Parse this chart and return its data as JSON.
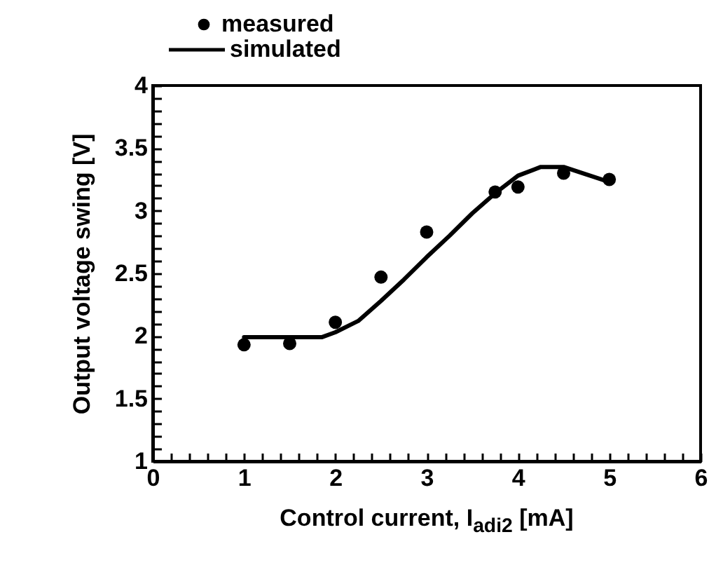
{
  "chart_data": {
    "type": "scatter",
    "xlabel": "Control current, I$_{adi2}$ [mA]",
    "ylabel": "Output voltage swing [V]",
    "xlim": [
      0,
      6
    ],
    "ylim": [
      1,
      4
    ],
    "xticks": [
      0,
      {
        "value": 0.2,
        "label": null
      },
      {
        "value": 0.4,
        "label": null
      },
      {
        "value": 0.6,
        "label": null
      },
      {
        "value": 0.8,
        "label": null
      },
      1,
      {
        "value": 1.2,
        "label": null
      },
      {
        "value": 1.4,
        "label": null
      },
      {
        "value": 1.6,
        "label": null
      },
      {
        "value": 1.8,
        "label": null
      },
      2,
      {
        "value": 2.2,
        "label": null
      },
      {
        "value": 2.4,
        "label": null
      },
      {
        "value": 2.6,
        "label": null
      },
      {
        "value": 2.8,
        "label": null
      },
      3,
      {
        "value": 3.2,
        "label": null
      },
      {
        "value": 3.4,
        "label": null
      },
      {
        "value": 3.6,
        "label": null
      },
      {
        "value": 3.8,
        "label": null
      },
      4,
      {
        "value": 4.2,
        "label": null
      },
      {
        "value": 4.4,
        "label": null
      },
      {
        "value": 4.6,
        "label": null
      },
      {
        "value": 4.8,
        "label": null
      },
      5,
      {
        "value": 5.2,
        "label": null
      },
      {
        "value": 5.4,
        "label": null
      },
      {
        "value": 5.6,
        "label": null
      },
      {
        "value": 5.8,
        "label": null
      },
      6
    ],
    "yticks": [
      1,
      {
        "value": 1.1,
        "label": null
      },
      {
        "value": 1.2,
        "label": null
      },
      {
        "value": 1.3,
        "label": null
      },
      {
        "value": 1.4,
        "label": null
      },
      1.5,
      {
        "value": 1.6,
        "label": null
      },
      {
        "value": 1.7,
        "label": null
      },
      {
        "value": 1.8,
        "label": null
      },
      {
        "value": 1.9,
        "label": null
      },
      2,
      {
        "value": 2.1,
        "label": null
      },
      {
        "value": 2.2,
        "label": null
      },
      {
        "value": 2.3,
        "label": null
      },
      {
        "value": 2.4,
        "label": null
      },
      2.5,
      {
        "value": 2.6,
        "label": null
      },
      {
        "value": 2.7,
        "label": null
      },
      {
        "value": 2.8,
        "label": null
      },
      {
        "value": 2.9,
        "label": null
      },
      3,
      {
        "value": 3.1,
        "label": null
      },
      {
        "value": 3.2,
        "label": null
      },
      {
        "value": 3.3,
        "label": null
      },
      {
        "value": 3.4,
        "label": null
      },
      3.5,
      {
        "value": 3.6,
        "label": null
      },
      {
        "value": 3.7,
        "label": null
      },
      {
        "value": 3.8,
        "label": null
      },
      {
        "value": 3.9,
        "label": null
      },
      4
    ],
    "legend": "top left",
    "series": [
      {
        "name": "measured",
        "type": "scatter",
        "color": "#000000",
        "x": [
          1,
          1.5,
          2,
          2.5,
          3,
          3.75,
          4,
          4.5,
          5
        ],
        "values": [
          1.93,
          1.94,
          2.11,
          2.47,
          2.83,
          3.15,
          3.19,
          3.3,
          3.25
        ]
      },
      {
        "name": "simulated",
        "type": "line",
        "color": "#000000",
        "x": [
          1,
          1.5,
          1.85,
          2,
          2.25,
          2.5,
          2.75,
          3,
          3.25,
          3.5,
          3.75,
          4,
          4.25,
          4.5,
          4.75,
          5
        ],
        "values": [
          1.99,
          1.99,
          1.99,
          2.03,
          2.12,
          2.28,
          2.45,
          2.63,
          2.8,
          2.98,
          3.14,
          3.28,
          3.35,
          3.35,
          3.29,
          3.23
        ]
      }
    ]
  }
}
